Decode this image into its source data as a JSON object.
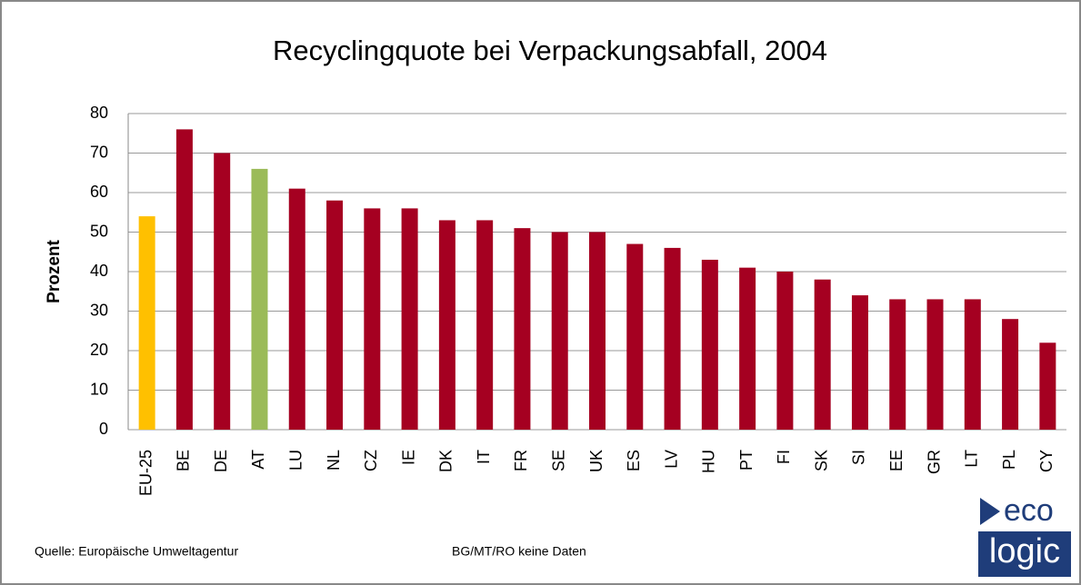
{
  "chart_data": {
    "type": "bar",
    "title": "Recyclingquote bei Verpackungsabfall, 2004",
    "ylabel": "Prozent",
    "categories": [
      "EU-25",
      "BE",
      "DE",
      "AT",
      "LU",
      "NL",
      "CZ",
      "IE",
      "DK",
      "IT",
      "FR",
      "SE",
      "UK",
      "ES",
      "LV",
      "HU",
      "PT",
      "FI",
      "SK",
      "SI",
      "EE",
      "GR",
      "LT",
      "PL",
      "CY"
    ],
    "values": [
      54,
      76,
      70,
      66,
      61,
      58,
      56,
      56,
      53,
      53,
      51,
      50,
      50,
      47,
      46,
      43,
      41,
      40,
      38,
      34,
      33,
      33,
      33,
      28,
      22
    ],
    "colors": [
      "#ffc000",
      "#a50021",
      "#a50021",
      "#9bbb59",
      "#a50021",
      "#a50021",
      "#a50021",
      "#a50021",
      "#a50021",
      "#a50021",
      "#a50021",
      "#a50021",
      "#a50021",
      "#a50021",
      "#a50021",
      "#a50021",
      "#a50021",
      "#a50021",
      "#a50021",
      "#a50021",
      "#a50021",
      "#a50021",
      "#a50021",
      "#a50021",
      "#a50021"
    ],
    "ylim": [
      0,
      80
    ],
    "yticks": [
      0,
      10,
      20,
      30,
      40,
      50,
      60,
      70,
      80
    ],
    "grid": true,
    "source": "Quelle: Europäische Umweltagentur",
    "note": "BG/MT/RO keine Daten",
    "logo": [
      "eco",
      "logic"
    ]
  }
}
